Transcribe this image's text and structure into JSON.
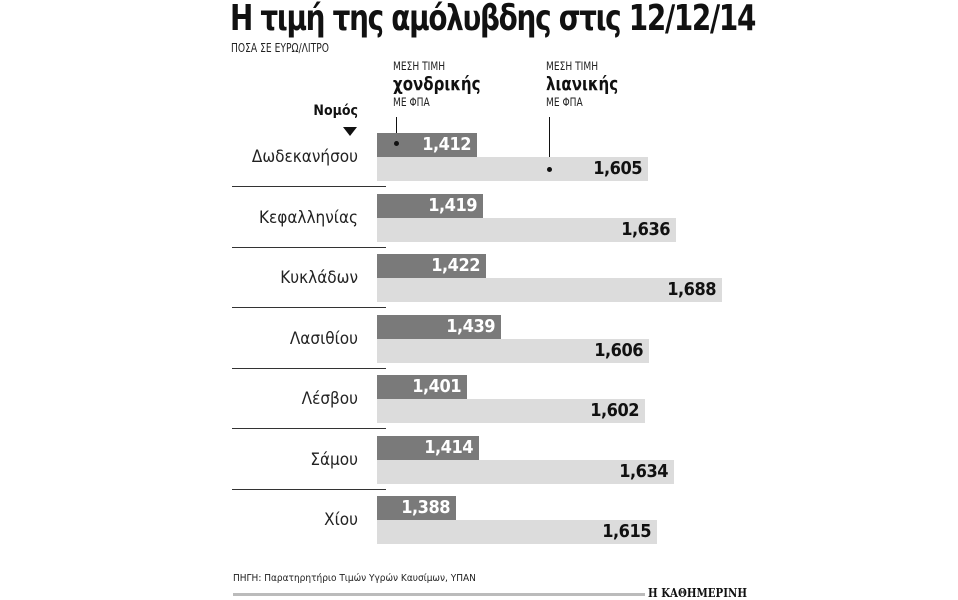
{
  "chart_data": {
    "type": "bar",
    "orientation": "horizontal",
    "title": "Η τιμή της αμόλυβδης στις 12/12/14",
    "subtitle": "ΠΟΣΑ ΣΕ ΕΥΡΩ/ΛΙΤΡΟ",
    "category_header": "Νομός",
    "categories": [
      "Δωδεκανήσου",
      "Κεφαλληνίας",
      "Κυκλάδων",
      "Λασιθίου",
      "Λέσβου",
      "Σάμου",
      "Χίου"
    ],
    "series": [
      {
        "name": "ΜΕΣΗ ΤΙΜΗ χονδρικής ΜΕ ΦΠΑ",
        "label_top": "ΜΕΣΗ ΤΙΜΗ",
        "label_main": "χονδρικής",
        "label_bottom": "ΜΕ ΦΠΑ",
        "color": "#7a7a7a",
        "values": [
          1.412,
          1.419,
          1.422,
          1.439,
          1.401,
          1.414,
          1.388
        ],
        "labels": [
          "1,412",
          "1,419",
          "1,422",
          "1,439",
          "1,401",
          "1,414",
          "1,388"
        ]
      },
      {
        "name": "ΜΕΣΗ ΤΙΜΗ λιανικής ΜΕ ΦΠΑ",
        "label_top": "ΜΕΣΗ ΤΙΜΗ",
        "label_main": "λιανικής",
        "label_bottom": "ΜΕ ΦΠΑ",
        "color": "#dcdcdc",
        "values": [
          1.605,
          1.636,
          1.688,
          1.606,
          1.602,
          1.634,
          1.615
        ],
        "labels": [
          "1,605",
          "1,636",
          "1,688",
          "1,606",
          "1,602",
          "1,634",
          "1,615"
        ]
      }
    ],
    "xlim": [
      1.3,
      1.7
    ],
    "grid": false,
    "source": "ΠΗΓΗ: Παρατηρητήριο Τιμών Υγρών Καυσίμων, ΥΠΑΝ",
    "brand": "Η ΚΑΘΗΜΕΡΙΝΗ"
  }
}
